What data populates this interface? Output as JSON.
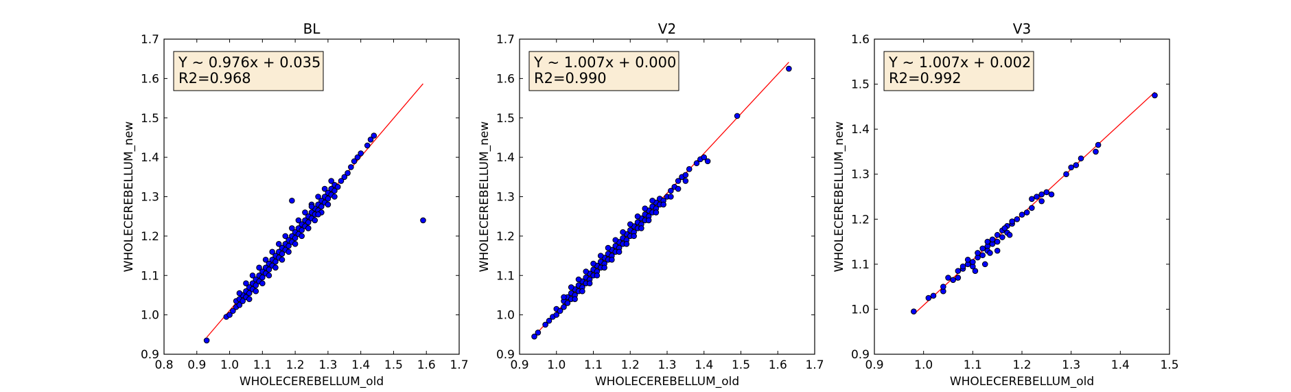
{
  "figure_colors": {
    "marker_fill": "#0000ff",
    "marker_edge": "#000000",
    "fit_line": "#ff0000",
    "annotation_bg": "#f5deb3",
    "annotation_edge": "#000000"
  },
  "chart_data": [
    {
      "type": "scatter",
      "title": "BL",
      "xlabel": "WHOLECEREBELLUM_old",
      "ylabel": "WHOLECEREBELLUM_new",
      "xlim": [
        0.8,
        1.7
      ],
      "ylim": [
        0.9,
        1.7
      ],
      "xticks": [
        0.8,
        0.9,
        1.0,
        1.1,
        1.2,
        1.3,
        1.4,
        1.5,
        1.6,
        1.7
      ],
      "yticks": [
        0.9,
        1.0,
        1.1,
        1.2,
        1.3,
        1.4,
        1.5,
        1.6,
        1.7
      ],
      "xtick_labels": [
        "0.8",
        "0.9",
        "1.0",
        "1.1",
        "1.2",
        "1.3",
        "1.4",
        "1.5",
        "1.6",
        "1.7"
      ],
      "ytick_labels": [
        "0.9",
        "1.0",
        "1.1",
        "1.2",
        "1.3",
        "1.4",
        "1.5",
        "1.6",
        "1.7"
      ],
      "annotation": [
        "Y ~ 0.976x + 0.035",
        "R2=0.968"
      ],
      "fit": {
        "slope": 0.976,
        "intercept": 0.035,
        "x_range": [
          0.93,
          1.59
        ]
      },
      "grid": false,
      "points": [
        [
          0.93,
          0.935
        ],
        [
          0.99,
          0.995
        ],
        [
          1.0,
          1.0
        ],
        [
          1.01,
          1.01
        ],
        [
          1.02,
          1.02
        ],
        [
          1.02,
          1.035
        ],
        [
          1.03,
          1.025
        ],
        [
          1.03,
          1.04
        ],
        [
          1.04,
          1.035
        ],
        [
          1.04,
          1.05
        ],
        [
          1.05,
          1.045
        ],
        [
          1.05,
          1.06
        ],
        [
          1.06,
          1.055
        ],
        [
          1.06,
          1.07
        ],
        [
          1.07,
          1.065
        ],
        [
          1.07,
          1.08
        ],
        [
          1.08,
          1.075
        ],
        [
          1.08,
          1.09
        ],
        [
          1.09,
          1.085
        ],
        [
          1.09,
          1.1
        ],
        [
          1.1,
          1.095
        ],
        [
          1.1,
          1.11
        ],
        [
          1.11,
          1.105
        ],
        [
          1.11,
          1.12
        ],
        [
          1.12,
          1.115
        ],
        [
          1.12,
          1.13
        ],
        [
          1.13,
          1.125
        ],
        [
          1.13,
          1.14
        ],
        [
          1.14,
          1.135
        ],
        [
          1.14,
          1.15
        ],
        [
          1.15,
          1.145
        ],
        [
          1.15,
          1.16
        ],
        [
          1.16,
          1.155
        ],
        [
          1.16,
          1.17
        ],
        [
          1.17,
          1.165
        ],
        [
          1.17,
          1.18
        ],
        [
          1.18,
          1.175
        ],
        [
          1.18,
          1.19
        ],
        [
          1.19,
          1.185
        ],
        [
          1.19,
          1.2
        ],
        [
          1.2,
          1.195
        ],
        [
          1.2,
          1.21
        ],
        [
          1.21,
          1.205
        ],
        [
          1.21,
          1.22
        ],
        [
          1.22,
          1.215
        ],
        [
          1.22,
          1.23
        ],
        [
          1.23,
          1.225
        ],
        [
          1.23,
          1.24
        ],
        [
          1.24,
          1.235
        ],
        [
          1.24,
          1.25
        ],
        [
          1.25,
          1.245
        ],
        [
          1.25,
          1.26
        ],
        [
          1.26,
          1.255
        ],
        [
          1.26,
          1.27
        ],
        [
          1.27,
          1.265
        ],
        [
          1.27,
          1.28
        ],
        [
          1.28,
          1.275
        ],
        [
          1.28,
          1.29
        ],
        [
          1.29,
          1.285
        ],
        [
          1.29,
          1.3
        ],
        [
          1.3,
          1.295
        ],
        [
          1.3,
          1.31
        ],
        [
          1.31,
          1.305
        ],
        [
          1.31,
          1.32
        ],
        [
          1.32,
          1.315
        ],
        [
          1.32,
          1.33
        ],
        [
          1.33,
          1.325
        ],
        [
          1.34,
          1.34
        ],
        [
          1.35,
          1.35
        ],
        [
          1.36,
          1.36
        ],
        [
          1.37,
          1.375
        ],
        [
          1.38,
          1.39
        ],
        [
          1.39,
          1.4
        ],
        [
          1.4,
          1.41
        ],
        [
          1.42,
          1.43
        ],
        [
          1.43,
          1.445
        ],
        [
          1.44,
          1.455
        ],
        [
          1.24,
          1.22
        ],
        [
          1.19,
          1.29
        ],
        [
          1.59,
          1.24
        ],
        [
          1.05,
          1.08
        ],
        [
          1.07,
          1.1
        ],
        [
          1.09,
          1.12
        ],
        [
          1.11,
          1.14
        ],
        [
          1.13,
          1.16
        ],
        [
          1.15,
          1.18
        ],
        [
          1.17,
          1.2
        ],
        [
          1.19,
          1.22
        ],
        [
          1.21,
          1.24
        ],
        [
          1.23,
          1.26
        ],
        [
          1.25,
          1.28
        ],
        [
          1.27,
          1.3
        ],
        [
          1.29,
          1.32
        ],
        [
          1.31,
          1.34
        ],
        [
          1.06,
          1.04
        ],
        [
          1.08,
          1.06
        ],
        [
          1.1,
          1.08
        ],
        [
          1.12,
          1.1
        ],
        [
          1.14,
          1.12
        ],
        [
          1.16,
          1.14
        ],
        [
          1.18,
          1.16
        ],
        [
          1.2,
          1.18
        ],
        [
          1.22,
          1.2
        ],
        [
          1.24,
          1.22
        ],
        [
          1.26,
          1.24
        ],
        [
          1.28,
          1.26
        ],
        [
          1.3,
          1.28
        ],
        [
          1.32,
          1.3
        ],
        [
          1.03,
          1.055
        ],
        [
          1.25,
          1.275
        ],
        [
          1.27,
          1.255
        ]
      ]
    },
    {
      "type": "scatter",
      "title": "V2",
      "xlabel": "WHOLECEREBELLUM_old",
      "ylabel": "WHOLECEREBELLUM_new",
      "xlim": [
        0.9,
        1.7
      ],
      "ylim": [
        0.9,
        1.7
      ],
      "xticks": [
        0.9,
        1.0,
        1.1,
        1.2,
        1.3,
        1.4,
        1.5,
        1.6,
        1.7
      ],
      "yticks": [
        0.9,
        1.0,
        1.1,
        1.2,
        1.3,
        1.4,
        1.5,
        1.6,
        1.7
      ],
      "xtick_labels": [
        "0.9",
        "1.0",
        "1.1",
        "1.2",
        "1.3",
        "1.4",
        "1.5",
        "1.6",
        "1.7"
      ],
      "ytick_labels": [
        "0.9",
        "1.0",
        "1.1",
        "1.2",
        "1.3",
        "1.4",
        "1.5",
        "1.6",
        "1.7"
      ],
      "annotation": [
        "Y ~ 1.007x + 0.000",
        "R2=0.990"
      ],
      "fit": {
        "slope": 1.007,
        "intercept": 0.0,
        "x_range": [
          0.94,
          1.63
        ]
      },
      "grid": false,
      "points": [
        [
          0.94,
          0.945
        ],
        [
          0.95,
          0.955
        ],
        [
          0.97,
          0.975
        ],
        [
          0.98,
          0.985
        ],
        [
          0.99,
          0.995
        ],
        [
          1.0,
          1.0
        ],
        [
          1.0,
          1.015
        ],
        [
          1.01,
          1.01
        ],
        [
          1.02,
          1.02
        ],
        [
          1.02,
          1.035
        ],
        [
          1.03,
          1.03
        ],
        [
          1.03,
          1.045
        ],
        [
          1.04,
          1.04
        ],
        [
          1.04,
          1.055
        ],
        [
          1.05,
          1.05
        ],
        [
          1.05,
          1.065
        ],
        [
          1.06,
          1.06
        ],
        [
          1.06,
          1.075
        ],
        [
          1.07,
          1.07
        ],
        [
          1.07,
          1.085
        ],
        [
          1.08,
          1.08
        ],
        [
          1.08,
          1.095
        ],
        [
          1.09,
          1.09
        ],
        [
          1.09,
          1.105
        ],
        [
          1.1,
          1.1
        ],
        [
          1.1,
          1.115
        ],
        [
          1.11,
          1.11
        ],
        [
          1.11,
          1.125
        ],
        [
          1.12,
          1.12
        ],
        [
          1.12,
          1.135
        ],
        [
          1.13,
          1.13
        ],
        [
          1.13,
          1.145
        ],
        [
          1.14,
          1.14
        ],
        [
          1.14,
          1.155
        ],
        [
          1.15,
          1.15
        ],
        [
          1.15,
          1.165
        ],
        [
          1.16,
          1.16
        ],
        [
          1.16,
          1.175
        ],
        [
          1.17,
          1.17
        ],
        [
          1.17,
          1.185
        ],
        [
          1.18,
          1.18
        ],
        [
          1.18,
          1.195
        ],
        [
          1.19,
          1.19
        ],
        [
          1.19,
          1.205
        ],
        [
          1.2,
          1.2
        ],
        [
          1.2,
          1.215
        ],
        [
          1.21,
          1.21
        ],
        [
          1.21,
          1.225
        ],
        [
          1.22,
          1.22
        ],
        [
          1.22,
          1.235
        ],
        [
          1.23,
          1.23
        ],
        [
          1.23,
          1.245
        ],
        [
          1.24,
          1.24
        ],
        [
          1.24,
          1.255
        ],
        [
          1.25,
          1.25
        ],
        [
          1.25,
          1.265
        ],
        [
          1.26,
          1.26
        ],
        [
          1.26,
          1.275
        ],
        [
          1.27,
          1.27
        ],
        [
          1.27,
          1.285
        ],
        [
          1.28,
          1.28
        ],
        [
          1.28,
          1.295
        ],
        [
          1.29,
          1.29
        ],
        [
          1.3,
          1.3
        ],
        [
          1.31,
          1.315
        ],
        [
          1.32,
          1.325
        ],
        [
          1.33,
          1.34
        ],
        [
          1.34,
          1.35
        ],
        [
          1.35,
          1.355
        ],
        [
          1.36,
          1.37
        ],
        [
          1.38,
          1.385
        ],
        [
          1.39,
          1.395
        ],
        [
          1.4,
          1.4
        ],
        [
          1.41,
          1.39
        ],
        [
          1.49,
          1.505
        ],
        [
          1.63,
          1.625
        ],
        [
          1.02,
          1.045
        ],
        [
          1.04,
          1.07
        ],
        [
          1.06,
          1.09
        ],
        [
          1.08,
          1.11
        ],
        [
          1.1,
          1.13
        ],
        [
          1.12,
          1.15
        ],
        [
          1.14,
          1.17
        ],
        [
          1.16,
          1.19
        ],
        [
          1.18,
          1.21
        ],
        [
          1.2,
          1.23
        ],
        [
          1.22,
          1.25
        ],
        [
          1.24,
          1.27
        ],
        [
          1.26,
          1.29
        ],
        [
          1.05,
          1.04
        ],
        [
          1.07,
          1.06
        ],
        [
          1.09,
          1.08
        ],
        [
          1.11,
          1.1
        ],
        [
          1.13,
          1.12
        ],
        [
          1.15,
          1.14
        ],
        [
          1.17,
          1.16
        ],
        [
          1.19,
          1.18
        ],
        [
          1.21,
          1.2
        ],
        [
          1.23,
          1.22
        ],
        [
          1.25,
          1.24
        ],
        [
          1.27,
          1.26
        ],
        [
          1.29,
          1.28
        ],
        [
          1.31,
          1.3
        ],
        [
          1.33,
          1.32
        ],
        [
          1.35,
          1.34
        ]
      ]
    },
    {
      "type": "scatter",
      "title": "V3",
      "xlabel": "WHOLECEREBELLUM_old",
      "ylabel": "WHOLECEREBELLUM_new",
      "xlim": [
        0.9,
        1.5
      ],
      "ylim": [
        0.9,
        1.6
      ],
      "xticks": [
        0.9,
        1.0,
        1.1,
        1.2,
        1.3,
        1.4,
        1.5
      ],
      "yticks": [
        0.9,
        1.0,
        1.1,
        1.2,
        1.3,
        1.4,
        1.5,
        1.6
      ],
      "xtick_labels": [
        "0.9",
        "1.0",
        "1.1",
        "1.2",
        "1.3",
        "1.4",
        "1.5"
      ],
      "ytick_labels": [
        "0.9",
        "1.0",
        "1.1",
        "1.2",
        "1.3",
        "1.4",
        "1.5",
        "1.6"
      ],
      "annotation": [
        "Y ~ 1.007x + 0.002",
        "R2=0.992"
      ],
      "fit": {
        "slope": 1.007,
        "intercept": 0.002,
        "x_range": [
          0.98,
          1.47
        ]
      },
      "grid": false,
      "points": [
        [
          0.98,
          0.995
        ],
        [
          1.01,
          1.025
        ],
        [
          1.02,
          1.03
        ],
        [
          1.04,
          1.04
        ],
        [
          1.04,
          1.05
        ],
        [
          1.06,
          1.065
        ],
        [
          1.07,
          1.07
        ],
        [
          1.07,
          1.085
        ],
        [
          1.08,
          1.09
        ],
        [
          1.08,
          1.095
        ],
        [
          1.09,
          1.1
        ],
        [
          1.1,
          1.095
        ],
        [
          1.1,
          1.105
        ],
        [
          1.11,
          1.115
        ],
        [
          1.11,
          1.125
        ],
        [
          1.12,
          1.12
        ],
        [
          1.12,
          1.135
        ],
        [
          1.13,
          1.14
        ],
        [
          1.13,
          1.13
        ],
        [
          1.14,
          1.145
        ],
        [
          1.14,
          1.155
        ],
        [
          1.15,
          1.15
        ],
        [
          1.15,
          1.165
        ],
        [
          1.16,
          1.16
        ],
        [
          1.16,
          1.175
        ],
        [
          1.17,
          1.17
        ],
        [
          1.17,
          1.185
        ],
        [
          1.18,
          1.19
        ],
        [
          1.18,
          1.195
        ],
        [
          1.2,
          1.21
        ],
        [
          1.21,
          1.215
        ],
        [
          1.22,
          1.225
        ],
        [
          1.22,
          1.245
        ],
        [
          1.23,
          1.25
        ],
        [
          1.24,
          1.24
        ],
        [
          1.24,
          1.255
        ],
        [
          1.25,
          1.26
        ],
        [
          1.26,
          1.255
        ],
        [
          1.29,
          1.3
        ],
        [
          1.3,
          1.315
        ],
        [
          1.31,
          1.32
        ],
        [
          1.32,
          1.335
        ],
        [
          1.35,
          1.35
        ],
        [
          1.355,
          1.365
        ],
        [
          1.47,
          1.475
        ],
        [
          1.05,
          1.07
        ],
        [
          1.09,
          1.11
        ],
        [
          1.13,
          1.15
        ],
        [
          1.15,
          1.13
        ],
        [
          1.19,
          1.2
        ],
        [
          1.125,
          1.1
        ],
        [
          1.165,
          1.18
        ],
        [
          1.105,
          1.085
        ],
        [
          1.135,
          1.125
        ],
        [
          1.175,
          1.165
        ]
      ]
    }
  ]
}
